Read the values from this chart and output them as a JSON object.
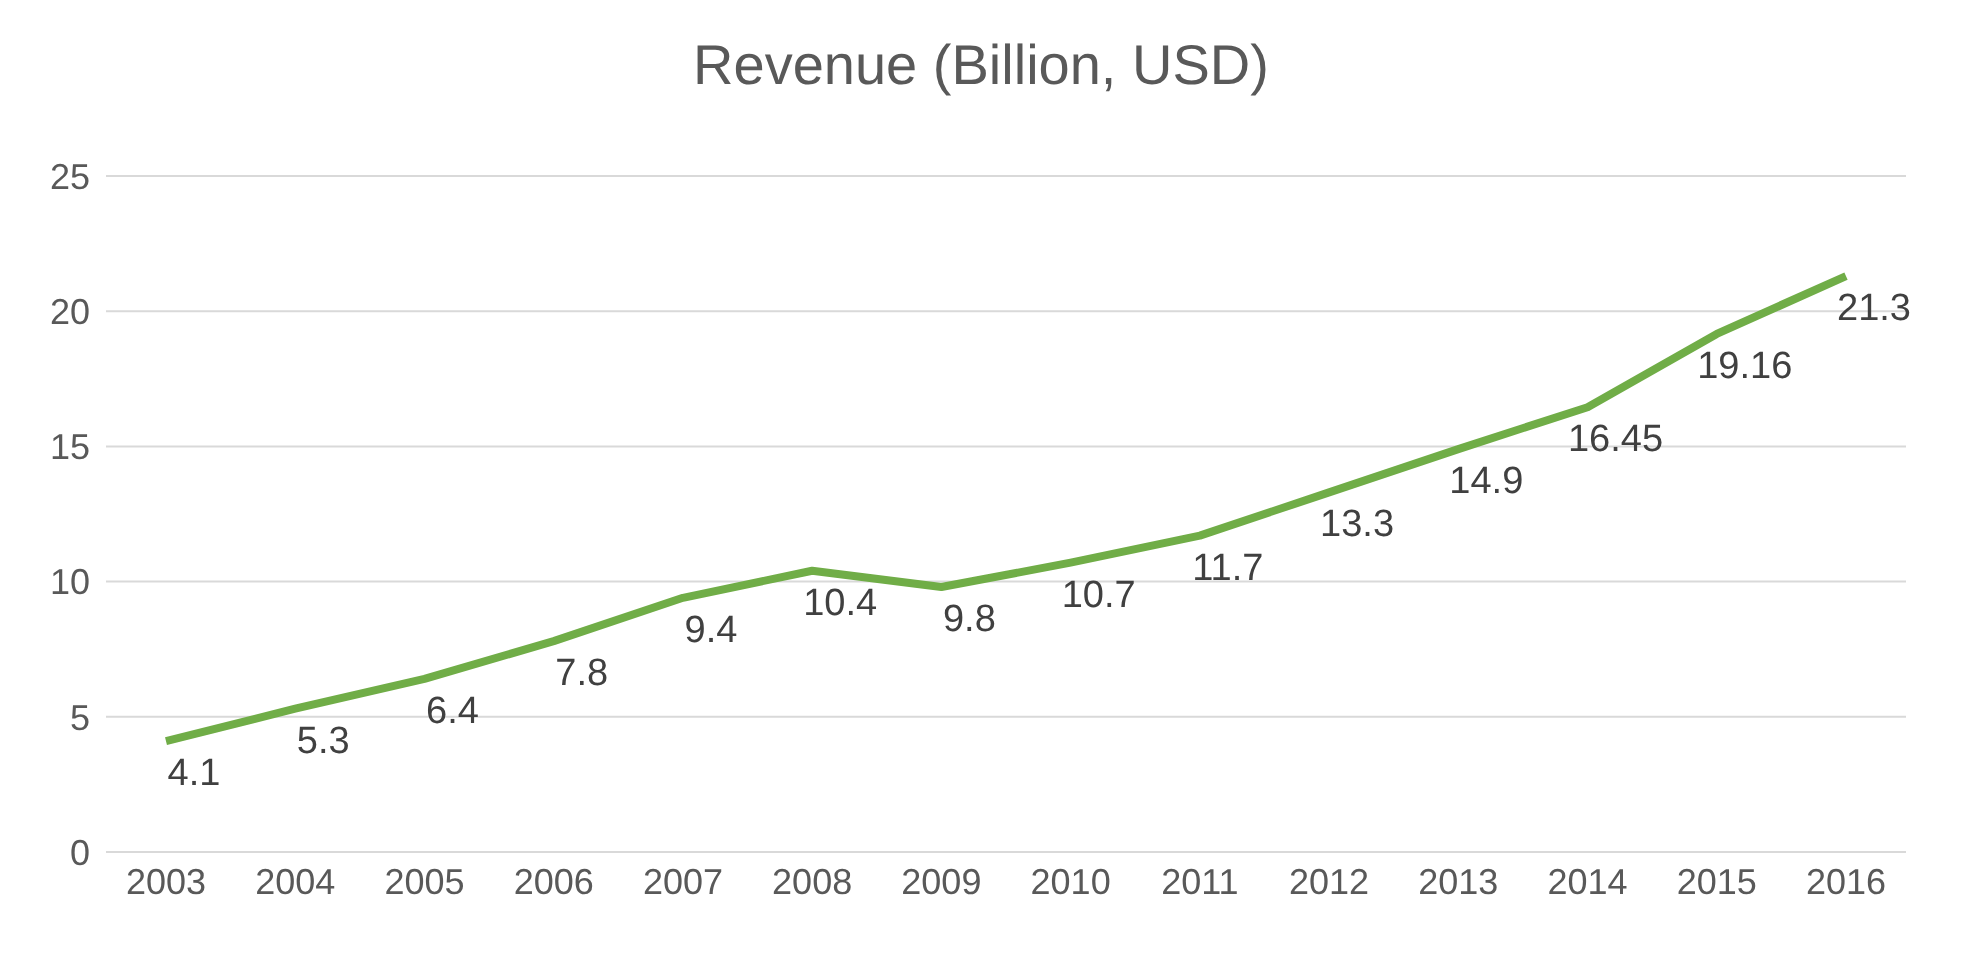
{
  "chart_data": {
    "type": "line",
    "title": "Revenue (Billion, USD)",
    "categories": [
      "2003",
      "2004",
      "2005",
      "2006",
      "2007",
      "2008",
      "2009",
      "2010",
      "2011",
      "2012",
      "2013",
      "2014",
      "2015",
      "2016"
    ],
    "series": [
      {
        "color": "#70ad47",
        "values": [
          4.1,
          5.3,
          6.4,
          7.8,
          9.4,
          10.4,
          9.8,
          10.7,
          11.7,
          13.3,
          14.9,
          16.45,
          19.16,
          21.3
        ]
      }
    ],
    "ylim": [
      0,
      25
    ],
    "yticks": [
      0,
      5,
      10,
      15,
      20,
      25
    ],
    "grid": "y",
    "data_labels": true,
    "marker": "none",
    "line_style": "solid"
  }
}
